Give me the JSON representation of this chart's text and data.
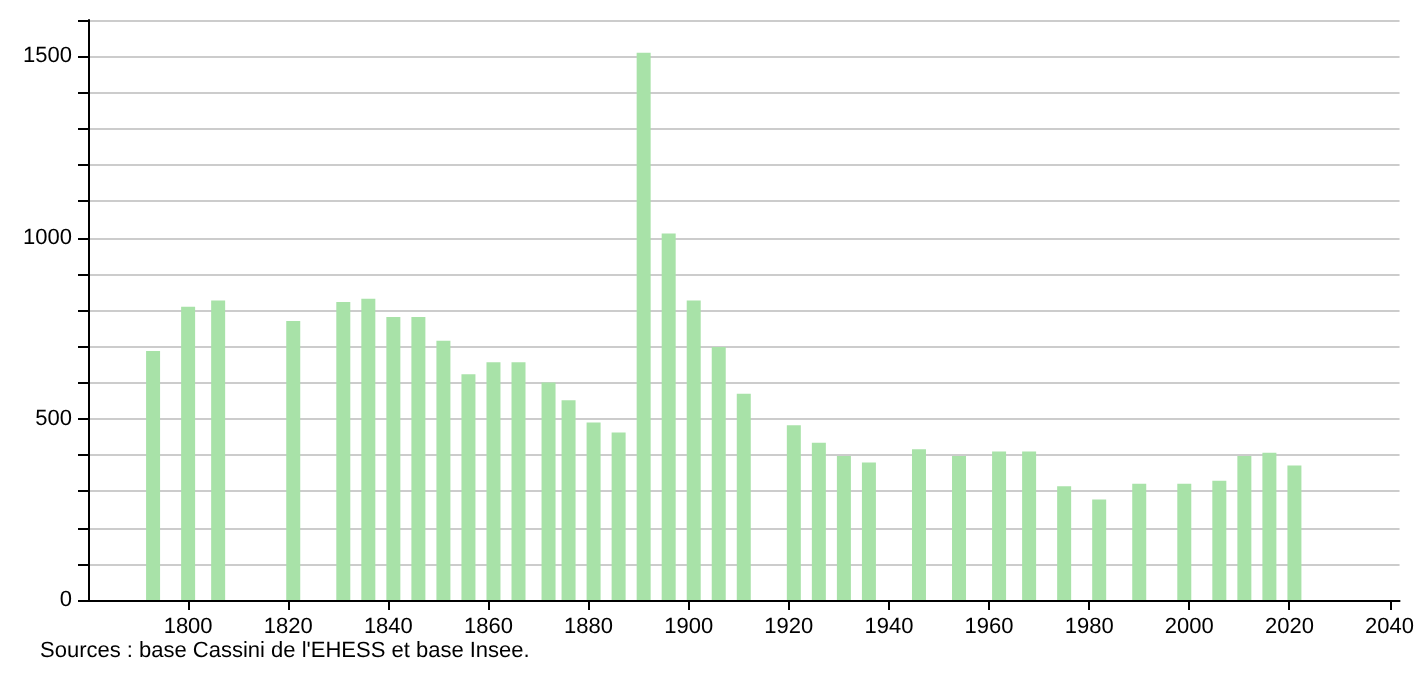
{
  "chart_data": {
    "type": "bar",
    "x": [
      1793,
      1800,
      1806,
      1821,
      1831,
      1836,
      1841,
      1846,
      1851,
      1856,
      1861,
      1866,
      1872,
      1876,
      1881,
      1886,
      1891,
      1896,
      1901,
      1906,
      1911,
      1921,
      1926,
      1931,
      1936,
      1946,
      1954,
      1962,
      1968,
      1975,
      1982,
      1990,
      1999,
      2006,
      2011,
      2016,
      2021
    ],
    "values": [
      687,
      809,
      826,
      770,
      822,
      831,
      781,
      781,
      715,
      623,
      656,
      656,
      600,
      551,
      490,
      462,
      1510,
      1011,
      826,
      698,
      569,
      482,
      434,
      397,
      379,
      416,
      397,
      410,
      410,
      314,
      277,
      321,
      321,
      329,
      397,
      406,
      371
    ],
    "color": "#a8e2a8",
    "xlim": [
      1780,
      2042
    ],
    "xticks": [
      1800,
      1820,
      1840,
      1860,
      1880,
      1900,
      1920,
      1940,
      1960,
      1980,
      2000,
      2020,
      2040
    ],
    "ylim": [
      0,
      1600
    ],
    "yticks": [
      0,
      {
        "value": 100,
        "label": null
      },
      {
        "value": 200,
        "label": null
      },
      {
        "value": 300,
        "label": null
      },
      {
        "value": 400,
        "label": null
      },
      500,
      {
        "value": 600,
        "label": null
      },
      {
        "value": 700,
        "label": null
      },
      {
        "value": 800,
        "label": null
      },
      {
        "value": 900,
        "label": null
      },
      1000,
      {
        "value": 1100,
        "label": null
      },
      {
        "value": 1200,
        "label": null
      },
      {
        "value": 1300,
        "label": null
      },
      {
        "value": 1400,
        "label": null
      },
      1500,
      {
        "value": 1600,
        "label": null
      }
    ],
    "grid": "y",
    "annotations": [
      "Sources : base Cassini de l'EHESS et base Insee."
    ]
  }
}
